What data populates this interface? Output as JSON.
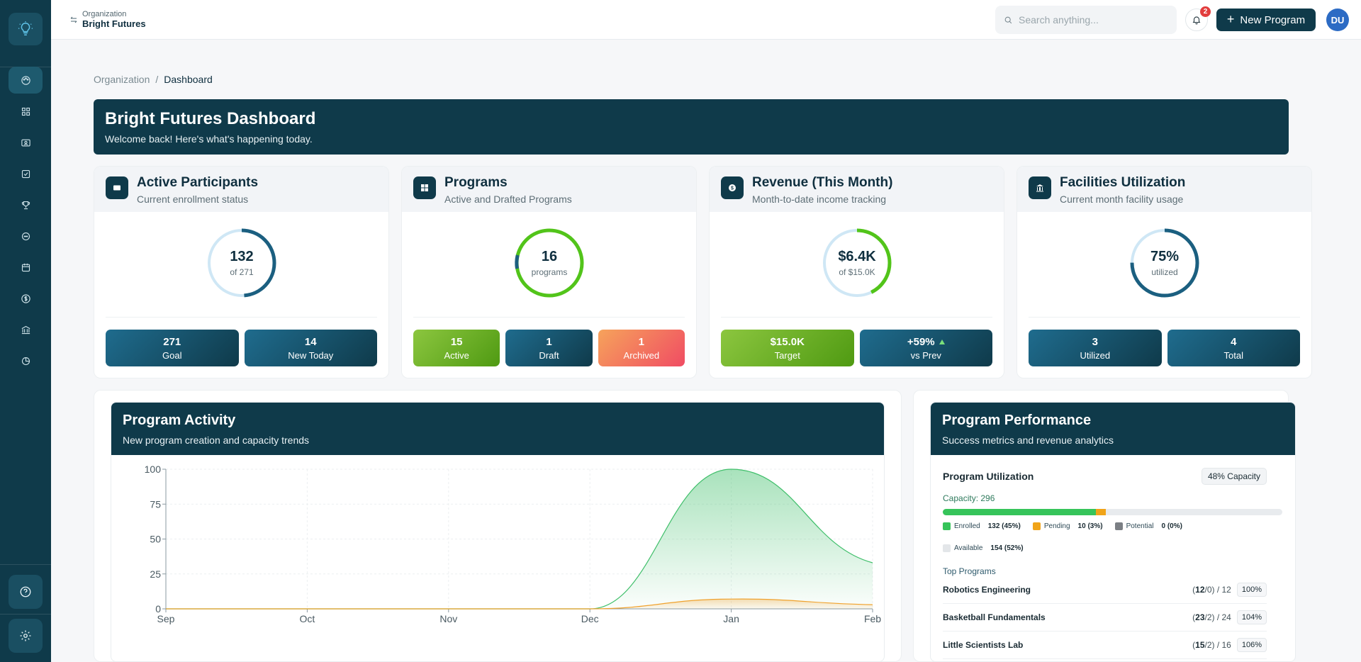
{
  "topbar": {
    "org_label": "Organization",
    "org_name": "Bright Futures",
    "search_placeholder": "Search anything...",
    "notification_count": "2",
    "new_program_label": "New Program",
    "avatar_initials": "DU"
  },
  "breadcrumb": {
    "root": "Organization",
    "separator": "/",
    "current": "Dashboard"
  },
  "hero": {
    "title": "Bright Futures Dashboard",
    "subtitle": "Welcome back! Here's what's happening today."
  },
  "sidebar": {
    "items": [
      {
        "icon": "palette-icon",
        "active": true
      },
      {
        "icon": "grid-icon"
      },
      {
        "icon": "id-card-icon"
      },
      {
        "icon": "checkbox-icon"
      },
      {
        "icon": "trophy-icon"
      },
      {
        "icon": "chat-icon"
      },
      {
        "icon": "calendar-icon"
      },
      {
        "icon": "dollar-icon"
      },
      {
        "icon": "building-icon"
      },
      {
        "icon": "pie-chart-icon"
      }
    ],
    "bottom": [
      {
        "icon": "help-icon"
      },
      {
        "icon": "settings-icon"
      }
    ]
  },
  "cards": {
    "participants": {
      "title": "Active Participants",
      "subtitle": "Current enrollment status",
      "value": "132",
      "of": "of 271",
      "fraction": 0.487,
      "pills": [
        {
          "value": "271",
          "label": "Goal"
        },
        {
          "value": "14",
          "label": "New Today"
        }
      ]
    },
    "programs": {
      "title": "Programs",
      "subtitle": "Active and Drafted Programs",
      "value": "16",
      "of": "programs",
      "pills": [
        {
          "value": "15",
          "label": "Active"
        },
        {
          "value": "1",
          "label": "Draft"
        },
        {
          "value": "1",
          "label": "Archived"
        }
      ]
    },
    "revenue": {
      "title": "Revenue (This Month)",
      "subtitle": "Month-to-date income tracking",
      "value": "$6.4K",
      "of": "of $15.0K",
      "fraction": 0.427,
      "pills": [
        {
          "value": "$15.0K",
          "label": "Target"
        },
        {
          "value": "+59%",
          "label": "vs Prev"
        }
      ]
    },
    "facilities": {
      "title": "Facilities Utilization",
      "subtitle": "Current month facility usage",
      "value": "75%",
      "of": "utilized",
      "fraction": 0.75,
      "pills": [
        {
          "value": "3",
          "label": "Utilized"
        },
        {
          "value": "4",
          "label": "Total"
        }
      ]
    }
  },
  "activity": {
    "title": "Program Activity",
    "subtitle": "New program creation and capacity trends"
  },
  "chart_data": {
    "type": "area",
    "x": [
      "Sep",
      "Oct",
      "Nov",
      "Dec",
      "Jan",
      "Feb"
    ],
    "ylim": [
      0,
      100
    ],
    "yticks": [
      0,
      25,
      50,
      75,
      100
    ],
    "grid": true,
    "series": [
      {
        "values": [
          0,
          0,
          0,
          0,
          100,
          33
        ],
        "color": "#3fbf6a"
      },
      {
        "values": [
          0,
          0,
          0,
          0,
          7,
          3
        ],
        "color": "#f0a22e"
      }
    ]
  },
  "performance": {
    "title": "Program Performance",
    "subtitle": "Success metrics and revenue analytics",
    "util_title": "Program Utilization",
    "capacity_badge": "48% Capacity",
    "capacity_label": "Capacity: 296",
    "bar": {
      "enrolled": 0.45,
      "pending": 0.03,
      "potential": 0.0
    },
    "legend": [
      {
        "name": "Enrolled",
        "value": "132 (45%)",
        "color": "#36c45a"
      },
      {
        "name": "Pending",
        "value": "10 (3%)",
        "color": "#f0a419"
      },
      {
        "name": "Potential",
        "value": "0 (0%)",
        "color": "#7b7f84"
      },
      {
        "name": "Available",
        "value": "154 (52%)",
        "color": "#e3e6e9"
      }
    ],
    "top_label": "Top Programs",
    "programs": [
      {
        "name": "Robotics Engineering",
        "enrolled": "12",
        "rest": "/0) / 12",
        "pct": "100%"
      },
      {
        "name": "Basketball Fundamentals",
        "enrolled": "23",
        "rest": "/2) / 24",
        "pct": "104%"
      },
      {
        "name": "Little Scientists Lab",
        "enrolled": "15",
        "rest": "/2) / 16",
        "pct": "106%"
      }
    ]
  }
}
